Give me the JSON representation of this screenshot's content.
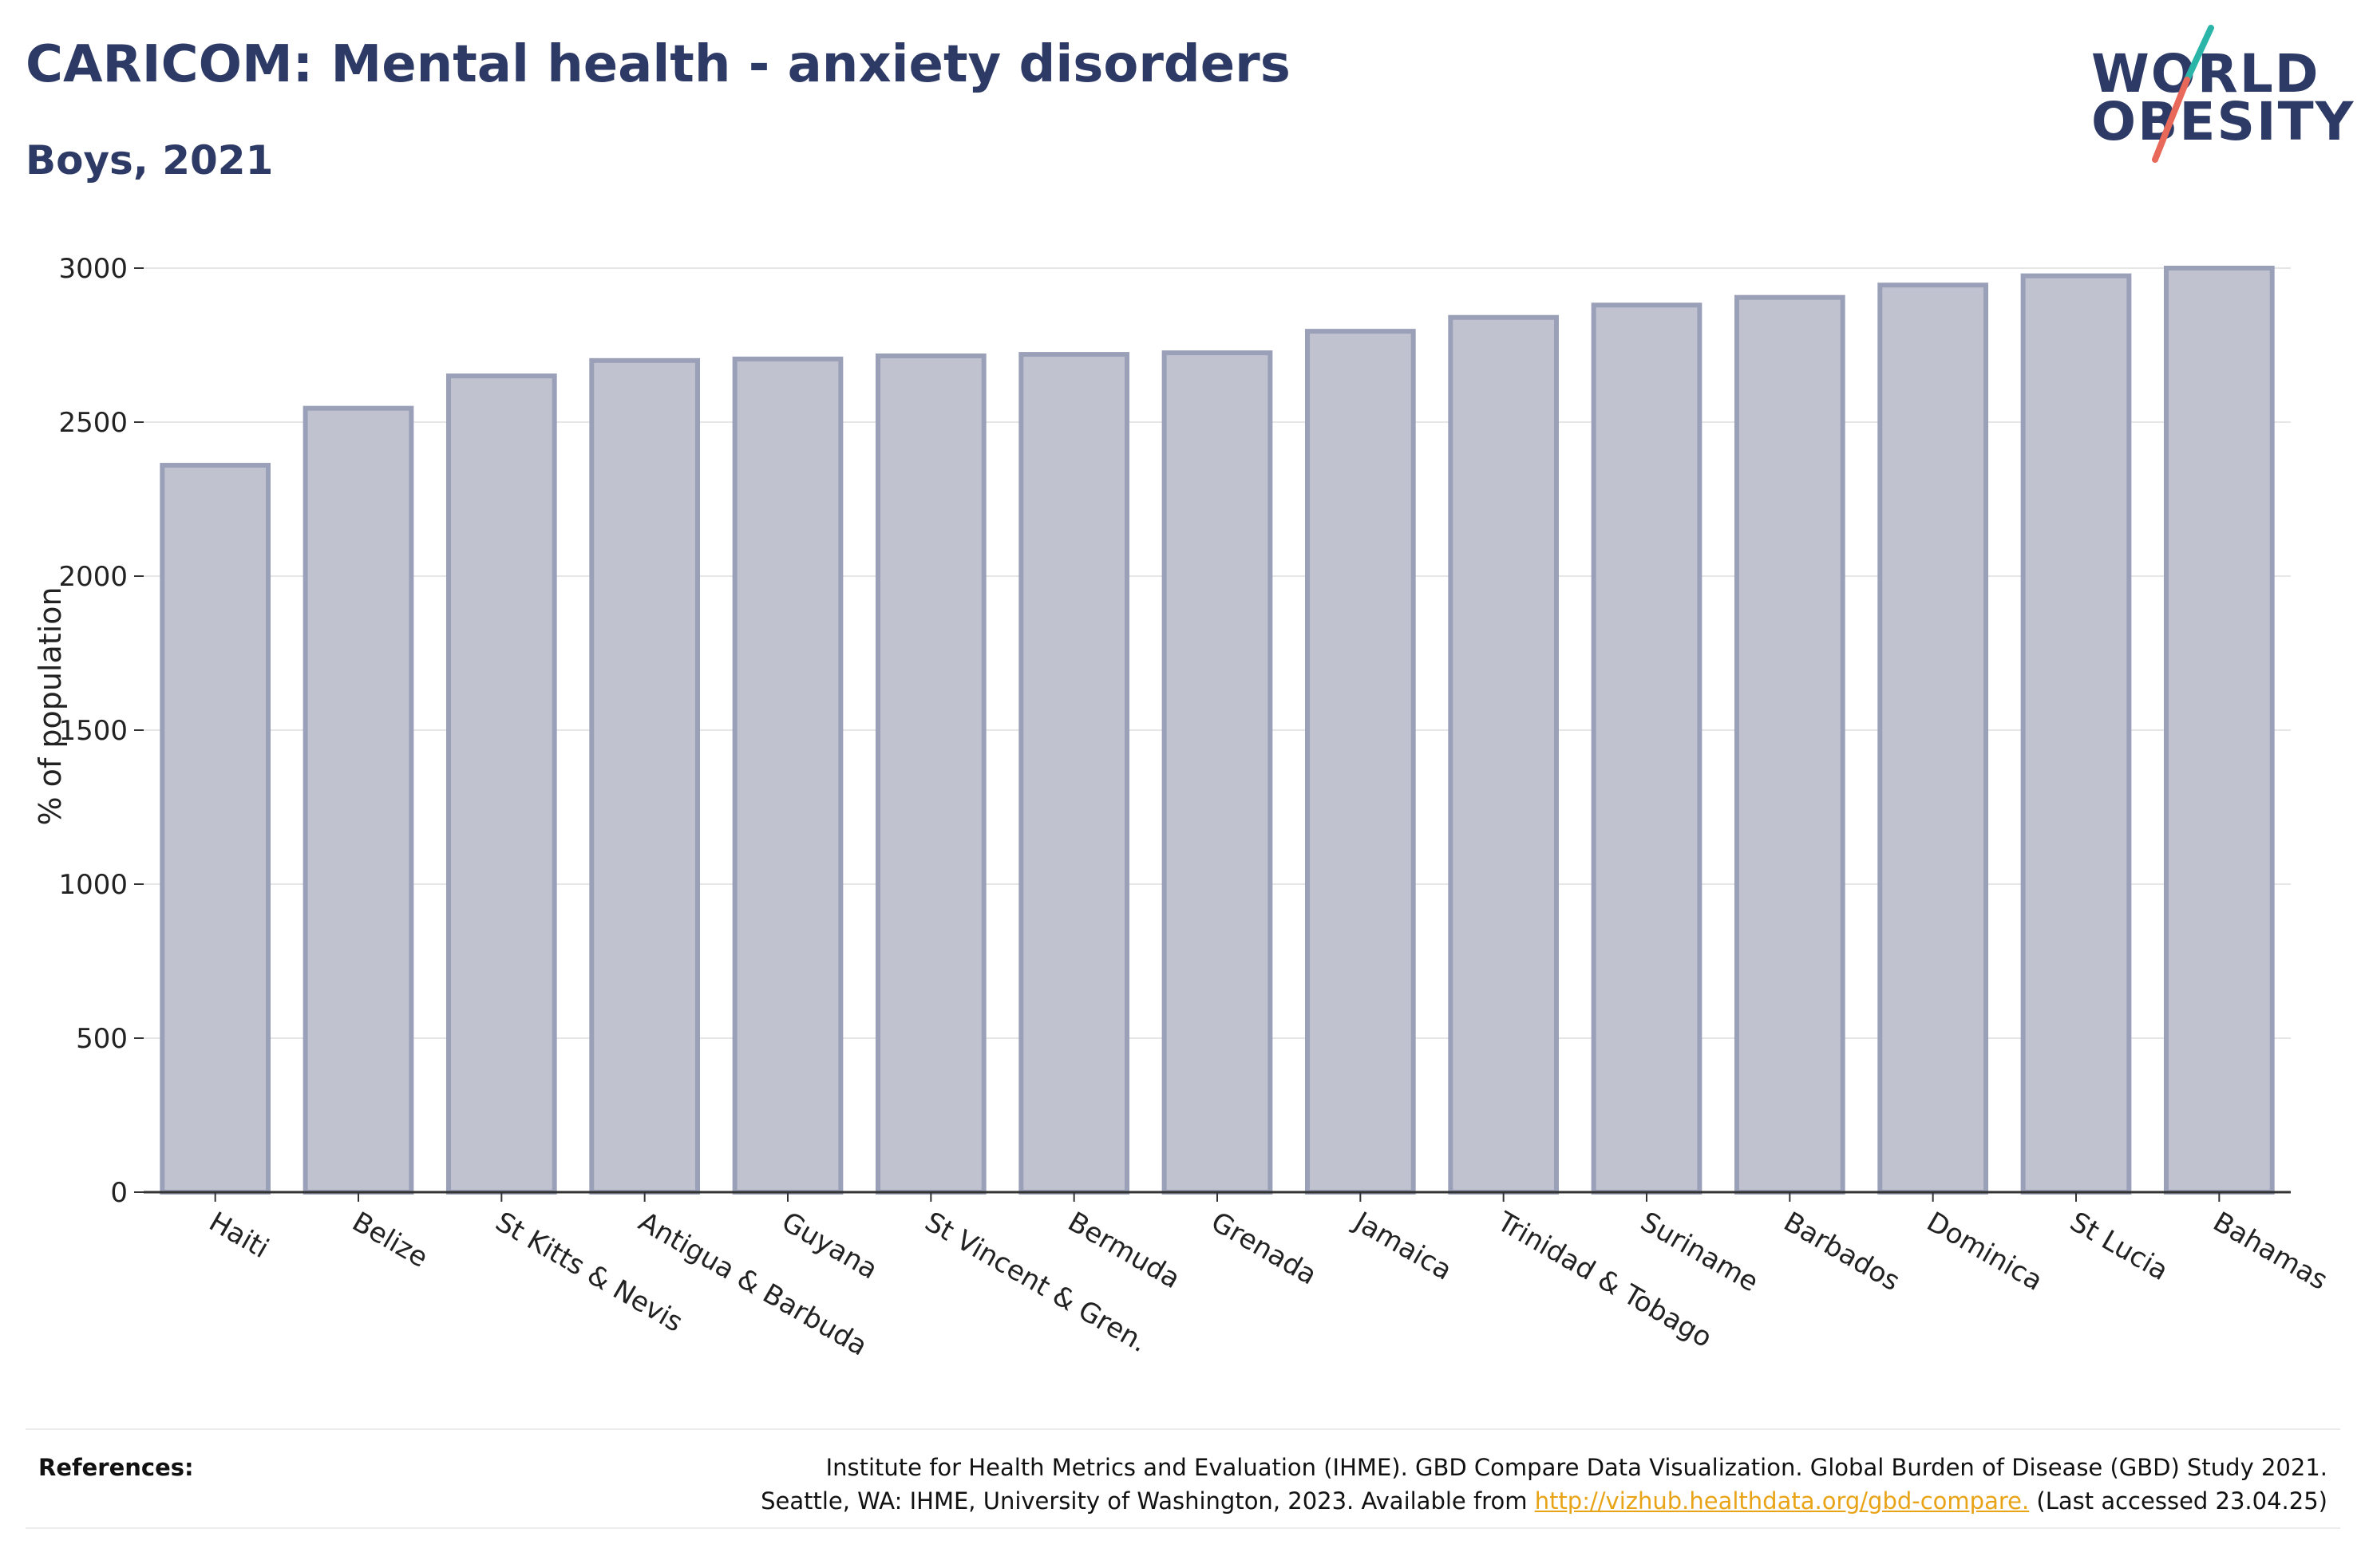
{
  "header": {
    "title": "CARICOM: Mental health - anxiety disorders",
    "subtitle": "Boys, 2021"
  },
  "logo": {
    "line1": "WORLD",
    "line2": "OBESITY",
    "accent_colors": [
      "#2bb5a9",
      "#e8685a"
    ]
  },
  "chart_data": {
    "type": "bar",
    "categories": [
      "Haiti",
      "Belize",
      "St Kitts & Nevis",
      "Antigua & Barbuda",
      "Guyana",
      "St Vincent & Gren.",
      "Bermuda",
      "Grenada",
      "Jamaica",
      "Trinidad & Tobago",
      "Suriname",
      "Barbados",
      "Dominica",
      "St Lucia",
      "Bahamas"
    ],
    "values": [
      2360,
      2545,
      2650,
      2700,
      2705,
      2715,
      2720,
      2725,
      2795,
      2840,
      2880,
      2905,
      2945,
      2975,
      3000
    ],
    "title": "CARICOM: Mental health - anxiety disorders",
    "subtitle": "Boys, 2021",
    "xlabel": "",
    "ylabel": "% of population",
    "ylim": [
      0,
      3000
    ],
    "yticks": [
      0,
      500,
      1000,
      1500,
      2000,
      2500,
      3000
    ],
    "grid": true,
    "bar_color": "#c0c3cf",
    "bar_edge_color": "#9aa0b8"
  },
  "references": {
    "label": "References:",
    "line1": "Institute for Health Metrics and Evaluation (IHME). GBD Compare Data Visualization. Global Burden of Disease (GBD) Study 2021.",
    "line2_prefix": "Seattle, WA: IHME, University of Washington, 2023. Available from ",
    "link": "http://vizhub.healthdata.org/gbd-compare.",
    "line2_suffix": " (Last accessed 23.04.25)"
  }
}
